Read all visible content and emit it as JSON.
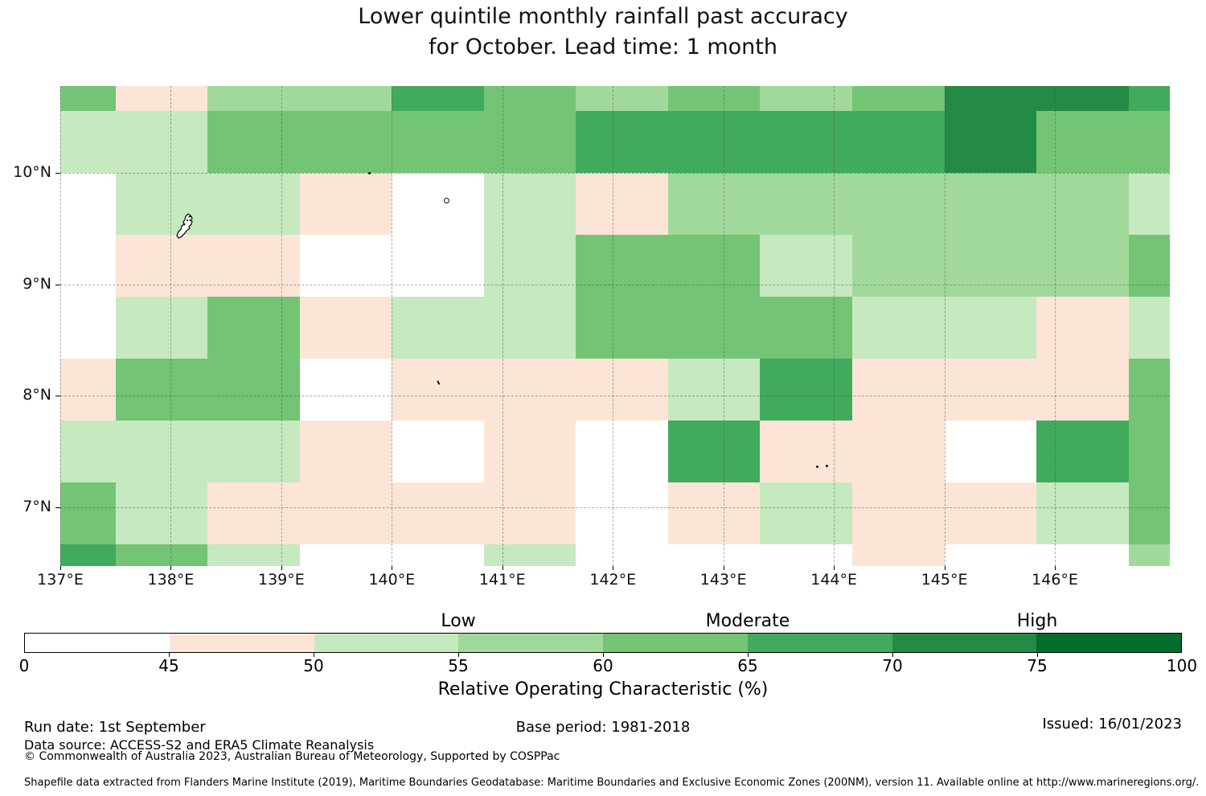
{
  "title": {
    "line1": "Lower quintile monthly rainfall past accuracy",
    "line2": "for October. Lead time: 1 month"
  },
  "chart_data": {
    "type": "heatmap",
    "title": "Lower quintile monthly rainfall past accuracy for October. Lead time: 1 month",
    "xlabel": "",
    "ylabel": "",
    "xlim": [
      137.0,
      147.04
    ],
    "ylim": [
      6.47,
      10.78
    ],
    "grid_on": true,
    "x_ticks": [
      {
        "label": "137°E",
        "lon": 137
      },
      {
        "label": "138°E",
        "lon": 138
      },
      {
        "label": "139°E",
        "lon": 139
      },
      {
        "label": "140°E",
        "lon": 140
      },
      {
        "label": "141°E",
        "lon": 141
      },
      {
        "label": "142°E",
        "lon": 142
      },
      {
        "label": "143°E",
        "lon": 143
      },
      {
        "label": "144°E",
        "lon": 144
      },
      {
        "label": "145°E",
        "lon": 145
      },
      {
        "label": "146°E",
        "lon": 146
      }
    ],
    "y_ticks": [
      {
        "label": "10°N",
        "lat": 10
      },
      {
        "label": "9°N",
        "lat": 9
      },
      {
        "label": "8°N",
        "lat": 8
      },
      {
        "label": "7°N",
        "lat": 7
      }
    ],
    "lon_edges": [
      137.0,
      137.5,
      138.333,
      139.167,
      140.0,
      140.833,
      141.667,
      142.5,
      143.333,
      144.167,
      145.0,
      145.833,
      146.667,
      147.04
    ],
    "lat_edges": [
      10.78,
      10.556,
      10.0,
      9.444,
      8.889,
      8.333,
      7.778,
      7.222,
      6.667,
      6.47
    ],
    "bins": [
      {
        "roc_range": "0-45",
        "color": "#ffffff"
      },
      {
        "roc_range": "45-50",
        "color": "#fce5d7"
      },
      {
        "roc_range": "50-55",
        "color": "#c7e9c0"
      },
      {
        "roc_range": "55-60",
        "color": "#a1d99b"
      },
      {
        "roc_range": "60-65",
        "color": "#74c476"
      },
      {
        "roc_range": "65-70",
        "color": "#41ab5d"
      },
      {
        "roc_range": "70-75",
        "color": "#238b45"
      },
      {
        "roc_range": "75-100",
        "color": "#006d2c"
      }
    ],
    "values_note": "bin index per cell; rows north to south (10.78N-6.47N), cols west to east (137E-147E)",
    "values": [
      [
        4,
        1,
        3,
        3,
        5,
        4,
        3,
        4,
        3,
        4,
        6,
        6,
        5
      ],
      [
        2,
        2,
        4,
        4,
        4,
        4,
        5,
        5,
        5,
        5,
        6,
        4,
        4
      ],
      [
        0,
        2,
        2,
        1,
        0,
        2,
        1,
        3,
        3,
        3,
        3,
        3,
        2
      ],
      [
        0,
        1,
        1,
        0,
        0,
        2,
        4,
        4,
        2,
        3,
        3,
        3,
        4
      ],
      [
        0,
        2,
        4,
        1,
        2,
        2,
        4,
        4,
        4,
        2,
        2,
        1,
        2
      ],
      [
        1,
        4,
        4,
        0,
        1,
        1,
        1,
        2,
        5,
        1,
        1,
        1,
        4
      ],
      [
        2,
        2,
        2,
        1,
        0,
        1,
        0,
        5,
        1,
        1,
        0,
        5,
        4
      ],
      [
        4,
        2,
        1,
        1,
        1,
        1,
        0,
        1,
        2,
        1,
        1,
        2,
        4
      ],
      [
        5,
        4,
        2,
        0,
        0,
        2,
        0,
        0,
        0,
        1,
        0,
        0,
        3
      ]
    ],
    "islands": [
      {
        "kind": "island",
        "name": "palau-main-island",
        "lon": 138.03,
        "lat": 9.64,
        "w": 27,
        "h": 32
      },
      {
        "kind": "dot",
        "name": "islet",
        "lon": 139.8,
        "lat": 10.0,
        "r": 1.5
      },
      {
        "kind": "circle",
        "name": "islet",
        "lon": 140.49,
        "lat": 9.76,
        "r": 2.5
      },
      {
        "kind": "dash",
        "name": "islet",
        "lon": 140.42,
        "lat": 8.11,
        "r": 2
      },
      {
        "kind": "dot",
        "name": "islet",
        "lon": 143.85,
        "lat": 7.36,
        "r": 1.5
      },
      {
        "kind": "dot",
        "name": "islet",
        "lon": 143.94,
        "lat": 7.37,
        "r": 1.5
      }
    ],
    "colorbar": {
      "ticks": [
        "0",
        "45",
        "50",
        "55",
        "60",
        "65",
        "70",
        "75",
        "100"
      ],
      "segment_colors": [
        "#ffffff",
        "#fce5d7",
        "#c7e9c0",
        "#a1d99b",
        "#74c476",
        "#41ab5d",
        "#238b45",
        "#006d2c"
      ],
      "zone_labels": [
        {
          "label": "Low",
          "tick_index": 3
        },
        {
          "label": "Moderate",
          "tick_index": 5
        },
        {
          "label": "High",
          "tick_index": 7
        }
      ],
      "axis_label": "Relative Operating Characteristic (%)"
    }
  },
  "footer": {
    "run_date": "Run date: 1st September",
    "base_period": "Base period: 1981-2018",
    "issued": "Issued: 16/01/2023",
    "data_source": "Data source: ACCESS-S2 and ERA5 Climate Reanalysis",
    "copyright": "© Commonwealth of Australia 2023, Australian Bureau of Meteorology, Supported by COSPPac",
    "shapefile": "Shapefile data extracted from Flanders Marine Institute (2019), Maritime Boundaries Geodatabase: Maritime Boundaries and Exclusive Economic Zones (200NM), version 11. Available online at http://www.marineregions.org/."
  }
}
